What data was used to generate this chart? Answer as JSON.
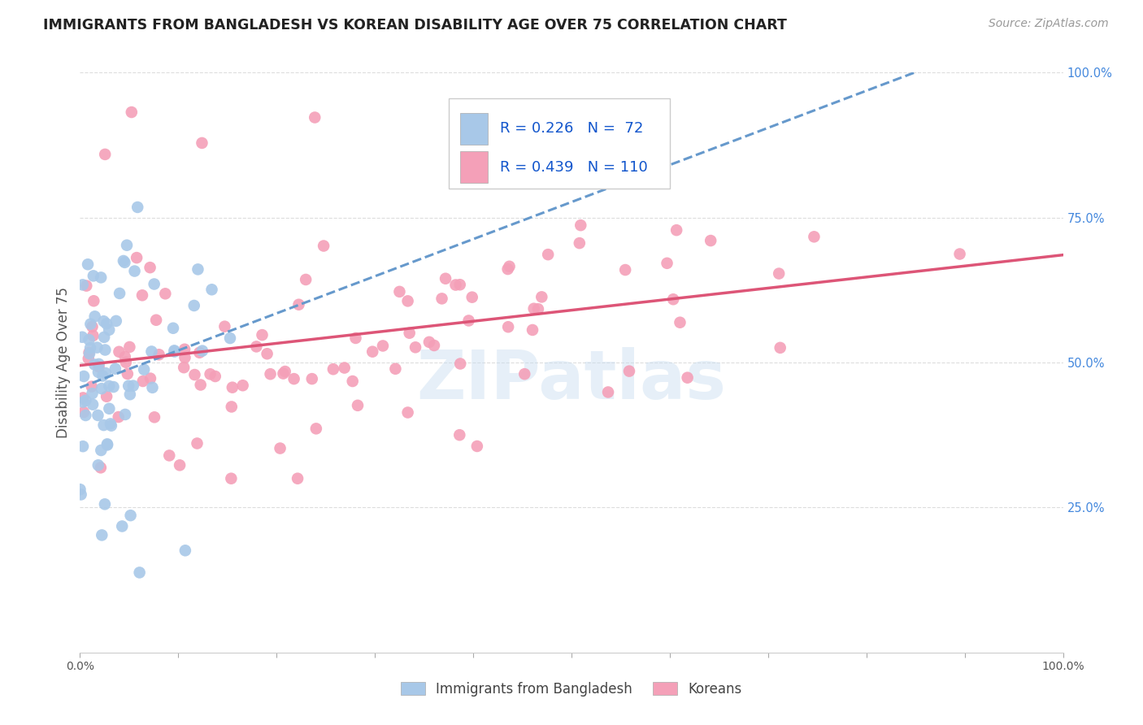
{
  "title": "IMMIGRANTS FROM BANGLADESH VS KOREAN DISABILITY AGE OVER 75 CORRELATION CHART",
  "source": "Source: ZipAtlas.com",
  "ylabel": "Disability Age Over 75",
  "legend_label1": "Immigrants from Bangladesh",
  "legend_label2": "Koreans",
  "R1": 0.226,
  "N1": 72,
  "R2": 0.439,
  "N2": 110,
  "color1": "#a8c8e8",
  "color2": "#f4a0b8",
  "line_color1": "#6699cc",
  "line_color2": "#dd5577",
  "watermark": "ZIPatlas",
  "title_fontsize": 12.5,
  "source_fontsize": 10,
  "xmin": 0.0,
  "xmax": 1.0,
  "ymin": 0.0,
  "ymax": 1.0,
  "grid_color": "#dddddd",
  "tick_color_right": "#4488dd"
}
